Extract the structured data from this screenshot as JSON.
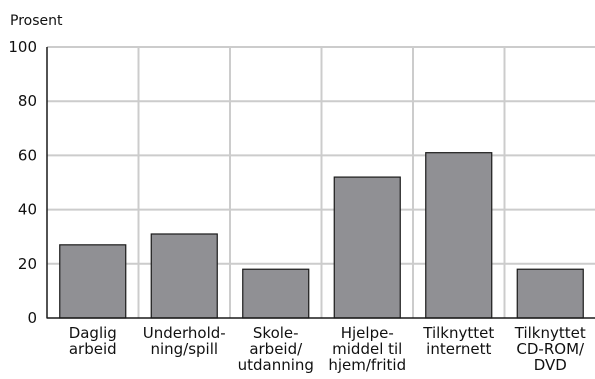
{
  "chart_data": {
    "type": "bar",
    "ylabel": "Prosent",
    "ylim": [
      0,
      100
    ],
    "yticks": [
      "0",
      "20",
      "40",
      "60",
      "80",
      "100"
    ],
    "grid": true,
    "categories": [
      [
        "Daglig",
        "arbeid"
      ],
      [
        "Underhold-",
        "ning/spill"
      ],
      [
        "Skole-",
        "arbeid/",
        "utdanning"
      ],
      [
        "Hjelpe-",
        "middel til",
        "hjem/fritid"
      ],
      [
        "Tilknyttet",
        "internett"
      ],
      [
        "Tilknyttet",
        "CD-ROM/",
        "DVD"
      ]
    ],
    "values": [
      27,
      31,
      18,
      52,
      61,
      18
    ],
    "colors": {
      "bar_fill": "#909094",
      "bar_stroke": "#1a1a1a",
      "grid": "#cccccc",
      "axis": "#1a1a1a"
    }
  }
}
